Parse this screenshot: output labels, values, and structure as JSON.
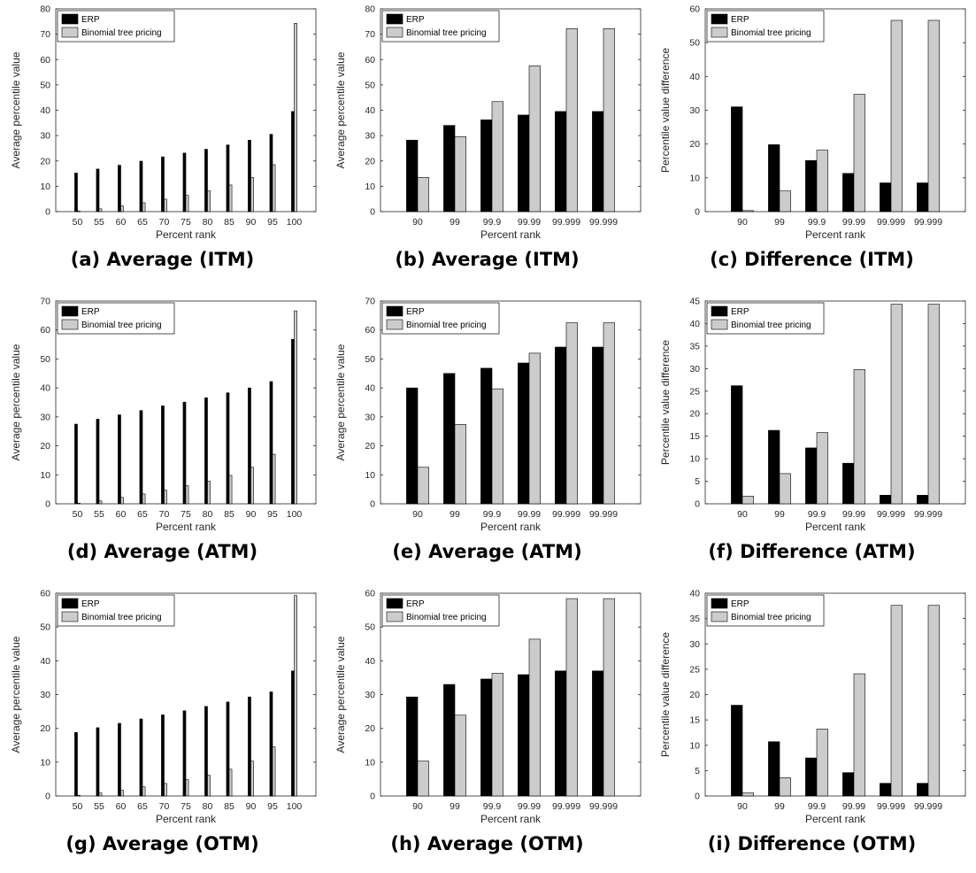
{
  "colors": {
    "erp": "#000000",
    "binomial": "#cccccc",
    "axis": "#262626"
  },
  "legend": {
    "erp": "ERP",
    "binomial": "Binomial tree pricing",
    "placement": "top-left"
  },
  "panels": [
    {
      "caption_id": "(a)",
      "caption_text": "Average (ITM)",
      "chart_data": {
        "type": "bar",
        "xlabel": "Percent rank",
        "ylabel": "Average percentile value",
        "ylim": [
          0,
          80
        ],
        "yticks": [
          0,
          10,
          20,
          30,
          40,
          50,
          60,
          70,
          80
        ],
        "categories": [
          "50",
          "55",
          "60",
          "65",
          "70",
          "75",
          "80",
          "85",
          "90",
          "95",
          "100"
        ],
        "series": [
          {
            "name": "ERP",
            "values": [
              15.2,
              16.8,
              18.3,
              19.9,
              21.6,
              23.1,
              24.6,
              26.3,
              28.2,
              30.5,
              39.5
            ]
          },
          {
            "name": "Binomial tree pricing",
            "values": [
              0.2,
              1.1,
              2.2,
              3.5,
              4.9,
              6.4,
              8.2,
              10.5,
              13.5,
              18.5,
              74.3
            ]
          }
        ],
        "bar_width": 0.25,
        "grid": false
      }
    },
    {
      "caption_id": "(b)",
      "caption_text": "Average (ITM)",
      "chart_data": {
        "type": "bar",
        "xlabel": "Percent rank",
        "ylabel": "Average percentile value",
        "ylim": [
          0,
          80
        ],
        "yticks": [
          0,
          10,
          20,
          30,
          40,
          50,
          60,
          70,
          80
        ],
        "categories": [
          "90",
          "99",
          "99.9",
          "99.99",
          "99.999",
          "99.999"
        ],
        "series": [
          {
            "name": "ERP",
            "values": [
              28.2,
              34.0,
              36.2,
              38.1,
              39.5,
              39.5
            ]
          },
          {
            "name": "Binomial tree pricing",
            "values": [
              13.5,
              29.6,
              43.4,
              57.5,
              72.2,
              72.2
            ]
          }
        ],
        "bar_width": 0.6,
        "grid": false
      }
    },
    {
      "caption_id": "(c)",
      "caption_text": "Difference (ITM)",
      "chart_data": {
        "type": "bar",
        "xlabel": "Percent rank",
        "ylabel": "Percentile value difference",
        "ylim": [
          0,
          60
        ],
        "yticks": [
          0,
          10,
          20,
          30,
          40,
          50,
          60
        ],
        "categories": [
          "90",
          "99",
          "99.9",
          "99.99",
          "99.999",
          "99.999"
        ],
        "series": [
          {
            "name": "ERP",
            "values": [
              31.0,
              19.8,
              15.1,
              11.3,
              8.5,
              8.5
            ]
          },
          {
            "name": "Binomial tree pricing",
            "values": [
              0.3,
              6.1,
              18.2,
              34.7,
              56.6,
              56.6
            ]
          }
        ],
        "bar_width": 0.6,
        "grid": false
      }
    },
    {
      "caption_id": "(d)",
      "caption_text": "Average (ATM)",
      "chart_data": {
        "type": "bar",
        "xlabel": "Percent rank",
        "ylabel": "Average percentile value",
        "ylim": [
          0,
          70
        ],
        "yticks": [
          0,
          10,
          20,
          30,
          40,
          50,
          60,
          70
        ],
        "categories": [
          "50",
          "55",
          "60",
          "65",
          "70",
          "75",
          "80",
          "85",
          "90",
          "95",
          "100"
        ],
        "series": [
          {
            "name": "ERP",
            "values": [
              27.5,
              29.2,
              30.7,
              32.2,
              33.8,
              35.1,
              36.6,
              38.3,
              40.0,
              42.2,
              56.8
            ]
          },
          {
            "name": "Binomial tree pricing",
            "values": [
              0.2,
              1.0,
              2.2,
              3.4,
              4.7,
              6.2,
              7.8,
              9.8,
              12.6,
              17.1,
              66.6
            ]
          }
        ],
        "bar_width": 0.25,
        "grid": false
      }
    },
    {
      "caption_id": "(e)",
      "caption_text": "Average (ATM)",
      "chart_data": {
        "type": "bar",
        "xlabel": "Percent rank",
        "ylabel": "Average percentile value",
        "ylim": [
          0,
          70
        ],
        "yticks": [
          0,
          10,
          20,
          30,
          40,
          50,
          60,
          70
        ],
        "categories": [
          "90",
          "99",
          "99.9",
          "99.99",
          "99.999",
          "99.999"
        ],
        "series": [
          {
            "name": "ERP",
            "values": [
              40.0,
              45.0,
              46.8,
              48.6,
              54.1,
              54.1
            ]
          },
          {
            "name": "Binomial tree pricing",
            "values": [
              12.6,
              27.4,
              39.7,
              52.0,
              62.5,
              62.5
            ]
          }
        ],
        "bar_width": 0.6,
        "grid": false
      }
    },
    {
      "caption_id": "(f)",
      "caption_text": "Difference (ATM)",
      "chart_data": {
        "type": "bar",
        "xlabel": "Percent rank",
        "ylabel": "Percentile value difference",
        "ylim": [
          0,
          45
        ],
        "yticks": [
          0,
          5,
          10,
          15,
          20,
          25,
          30,
          35,
          40,
          45
        ],
        "categories": [
          "90",
          "99",
          "99.9",
          "99.99",
          "99.999",
          "99.999"
        ],
        "series": [
          {
            "name": "ERP",
            "values": [
              26.2,
              16.3,
              12.4,
              9.0,
              1.9,
              1.9
            ]
          },
          {
            "name": "Binomial tree pricing",
            "values": [
              1.7,
              6.7,
              15.8,
              29.8,
              44.3,
              44.3
            ]
          }
        ],
        "bar_width": 0.6,
        "grid": false
      }
    },
    {
      "caption_id": "(g)",
      "caption_text": "Average (OTM)",
      "chart_data": {
        "type": "bar",
        "xlabel": "Percent rank",
        "ylabel": "Average percentile value",
        "ylim": [
          0,
          60
        ],
        "yticks": [
          0,
          10,
          20,
          30,
          40,
          50,
          60
        ],
        "categories": [
          "50",
          "55",
          "60",
          "65",
          "70",
          "75",
          "80",
          "85",
          "90",
          "95",
          "100"
        ],
        "series": [
          {
            "name": "ERP",
            "values": [
              18.8,
              20.2,
              21.5,
              22.8,
              24.0,
              25.2,
              26.5,
              27.8,
              29.3,
              30.8,
              37.0
            ]
          },
          {
            "name": "Binomial tree pricing",
            "values": [
              0.2,
              0.9,
              1.7,
              2.7,
              3.7,
              4.8,
              6.1,
              7.9,
              10.3,
              14.5,
              59.3
            ]
          }
        ],
        "bar_width": 0.25,
        "grid": false
      }
    },
    {
      "caption_id": "(h)",
      "caption_text": "Average (OTM)",
      "chart_data": {
        "type": "bar",
        "xlabel": "Percent rank",
        "ylabel": "Average percentile value",
        "ylim": [
          0,
          60
        ],
        "yticks": [
          0,
          10,
          20,
          30,
          40,
          50,
          60
        ],
        "categories": [
          "90",
          "99",
          "99.9",
          "99.99",
          "99.999",
          "99.999"
        ],
        "series": [
          {
            "name": "ERP",
            "values": [
              29.3,
              33.0,
              34.6,
              35.9,
              37.0,
              37.0
            ]
          },
          {
            "name": "Binomial tree pricing",
            "values": [
              10.3,
              23.9,
              36.3,
              46.4,
              58.4,
              58.4
            ]
          }
        ],
        "bar_width": 0.6,
        "grid": false
      }
    },
    {
      "caption_id": "(i)",
      "caption_text": "Difference (OTM)",
      "chart_data": {
        "type": "bar",
        "xlabel": "Percent rank",
        "ylabel": "Percentile value difference",
        "ylim": [
          0,
          40
        ],
        "yticks": [
          0,
          5,
          10,
          15,
          20,
          25,
          30,
          35,
          40
        ],
        "categories": [
          "90",
          "99",
          "99.9",
          "99.99",
          "99.999",
          "99.999"
        ],
        "series": [
          {
            "name": "ERP",
            "values": [
              17.9,
              10.7,
              7.5,
              4.6,
              2.5,
              2.5
            ]
          },
          {
            "name": "Binomial tree pricing",
            "values": [
              0.6,
              3.6,
              13.2,
              24.1,
              37.6,
              37.6
            ]
          }
        ],
        "bar_width": 0.6,
        "grid": false
      }
    }
  ]
}
